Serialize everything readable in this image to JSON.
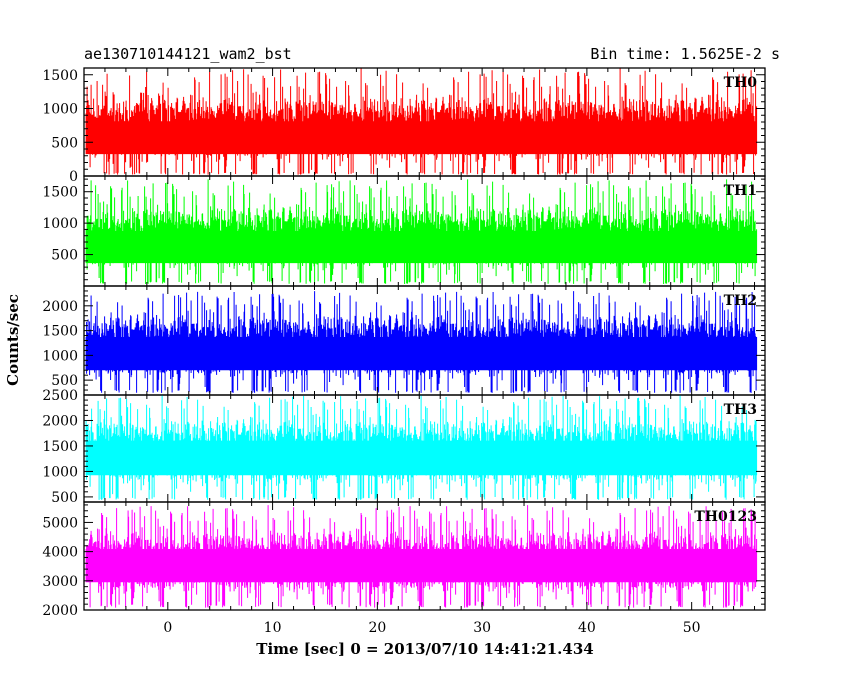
{
  "header": {
    "title_left": "ae130710144121_wam2_bst",
    "title_right": "Bin time: 1.5625E-2 s"
  },
  "chart_data": {
    "type": "line",
    "xlabel": "Time [sec] 0 = 2013/07/10 14:41:21.434",
    "ylabel": "Counts/sec",
    "xlim": [
      -8,
      57
    ],
    "xticks": [
      0,
      10,
      20,
      30,
      40,
      50
    ],
    "x_range_data": [
      -7.8,
      56.2
    ],
    "panels": [
      {
        "name": "TH0",
        "color": "#ff0000",
        "ylim": [
          0,
          1600
        ],
        "yticks": [
          0,
          500,
          1000,
          1500
        ],
        "baseline_mean": 600,
        "typical_min": 50,
        "typical_max": 1300,
        "peak_max": 1600
      },
      {
        "name": "TH1",
        "color": "#00ff00",
        "ylim": [
          0,
          1750
        ],
        "yticks": [
          500,
          1000,
          1500
        ],
        "baseline_mean": 650,
        "typical_min": 80,
        "typical_max": 1400,
        "peak_max": 1700
      },
      {
        "name": "TH2",
        "color": "#0000ff",
        "ylim": [
          200,
          2400
        ],
        "yticks": [
          500,
          1000,
          1500,
          2000
        ],
        "baseline_mean": 1100,
        "typical_min": 300,
        "typical_max": 2000,
        "peak_max": 2300
      },
      {
        "name": "TH3",
        "color": "#00ffff",
        "ylim": [
          400,
          2500
        ],
        "yticks": [
          500,
          1000,
          1500,
          2000,
          2500
        ],
        "baseline_mean": 1350,
        "typical_min": 500,
        "typical_max": 2200,
        "peak_max": 2500
      },
      {
        "name": "TH0123",
        "color": "#ff00ff",
        "ylim": [
          2000,
          5700
        ],
        "yticks": [
          2000,
          3000,
          4000,
          5000
        ],
        "baseline_mean": 3700,
        "typical_min": 2200,
        "typical_max": 5000,
        "peak_max": 5600
      }
    ]
  }
}
